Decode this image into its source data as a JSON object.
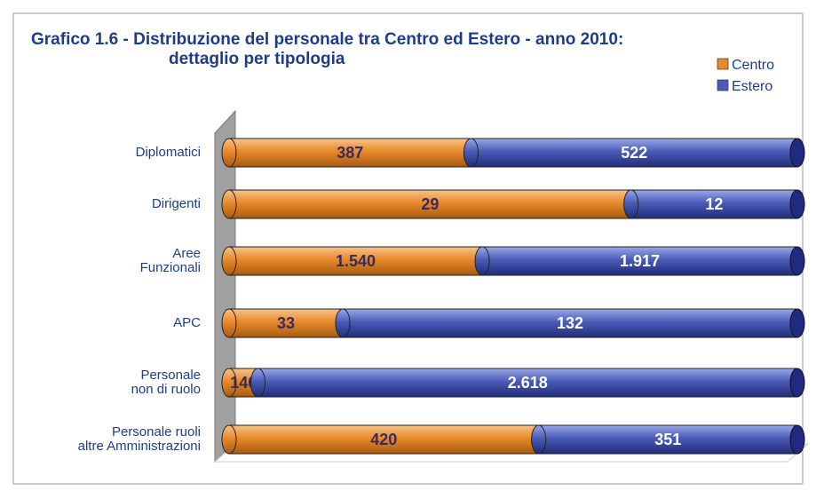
{
  "chart_data": {
    "type": "bar",
    "orientation": "horizontal",
    "stacked": "percent",
    "title": "Grafico 1.6 - Distribuzione del personale tra Centro ed Estero - anno 2010:\ndettaglio per tipologia",
    "categories": [
      "Diplomatici",
      "Dirigenti",
      "Aree\nFunzionali",
      "APC",
      "Personale\nnon di ruolo",
      "Personale ruoli\naltre Amministrazioni"
    ],
    "series": [
      {
        "name": "Centro",
        "color": "#e8892b",
        "values": [
          387,
          29,
          1540,
          33,
          140,
          420
        ],
        "value_labels": [
          "387",
          "29",
          "1.540",
          "33",
          "140",
          "420"
        ]
      },
      {
        "name": "Estero",
        "color": "#4a5cb8",
        "values": [
          522,
          12,
          1917,
          132,
          2618,
          351
        ],
        "value_labels": [
          "522",
          "12",
          "1.917",
          "132",
          "2.618",
          "351"
        ]
      }
    ],
    "legend": "top-right"
  }
}
